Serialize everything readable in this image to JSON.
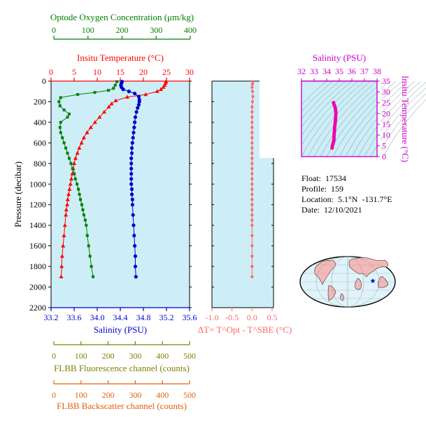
{
  "info": {
    "float": "Float:  17534",
    "profile": "Profile:  159",
    "location": "Location:  5.1°N  -131.7°E",
    "date": "Date:  12/10/2021"
  },
  "axes": {
    "oxygen": {
      "title": "Optode Oxygen Concentration (μm/kg)",
      "ticks": [
        "0",
        "100",
        "200",
        "300",
        "400"
      ],
      "range": [
        0,
        400
      ],
      "color": "#008000"
    },
    "temperature": {
      "title": "Insitu Temperature (°C)",
      "ticks": [
        "0",
        "5",
        "10",
        "15",
        "20",
        "25",
        "30"
      ],
      "range": [
        0,
        30
      ],
      "color": "#ff0000"
    },
    "pressure": {
      "title": "Pressure (decibar)",
      "ticks": [
        "0",
        "200",
        "400",
        "600",
        "800",
        "1000",
        "1200",
        "1400",
        "1600",
        "1800",
        "2000",
        "2200"
      ],
      "range": [
        0,
        2200
      ]
    },
    "salinity": {
      "title": "Salinity (PSU)",
      "ticks": [
        "33.2",
        "33.6",
        "34.0",
        "34.4",
        "34.8",
        "35.2",
        "35.6"
      ],
      "range": [
        33.2,
        35.6
      ],
      "color": "#0000cc"
    },
    "delta_t": {
      "title": "ΔT= T^Opt - T^SBE (°C)",
      "ticks": [
        "-1.0",
        "-0.5",
        "0.0",
        "0.5"
      ],
      "range": [
        -1.0,
        0.5
      ],
      "color": "#ff6666"
    },
    "flbb_fluor": {
      "title": "FLBB Fluorescence channel (counts)",
      "ticks": [
        "0",
        "100",
        "200",
        "300",
        "400",
        "500"
      ],
      "range": [
        0,
        500
      ],
      "color": "#808000"
    },
    "flbb_back": {
      "title": "FLBB Backscatter channel (counts)",
      "ticks": [
        "0",
        "100",
        "200",
        "300",
        "400",
        "500"
      ],
      "range": [
        0,
        500
      ],
      "color": "#e06010"
    },
    "ts_salinity": {
      "title": "Salinity (PSU)",
      "ticks": [
        "32",
        "33",
        "34",
        "35",
        "36",
        "37",
        "38"
      ],
      "range": [
        32,
        38
      ],
      "color": "#cc00cc"
    },
    "ts_temperature": {
      "title": "Insitu Temperature (°C)",
      "ticks": [
        "0",
        "5",
        "10",
        "15",
        "20",
        "25",
        "30",
        "35"
      ],
      "range": [
        0,
        35
      ],
      "color": "#cc00cc"
    }
  },
  "colors": {
    "panel_bg": "#cdeef6",
    "map_land": "#f4b8b8",
    "map_ocean": "#dff4fa"
  },
  "chart_data": [
    {
      "type": "line",
      "title": "",
      "series": [
        {
          "name": "Insitu Temperature (°C)",
          "x_axis": "temperature",
          "points": [
            [
              24.9,
              5
            ],
            [
              24.8,
              20
            ],
            [
              24.6,
              40
            ],
            [
              24.3,
              60
            ],
            [
              23.8,
              80
            ],
            [
              23.0,
              100
            ],
            [
              20.5,
              130
            ],
            [
              16.5,
              155
            ],
            [
              14.0,
              190
            ],
            [
              13.1,
              220
            ],
            [
              12.5,
              250
            ],
            [
              11.5,
              300
            ],
            [
              10.5,
              350
            ],
            [
              9.5,
              400
            ],
            [
              8.6,
              450
            ],
            [
              7.8,
              500
            ],
            [
              7.1,
              550
            ],
            [
              6.6,
              600
            ],
            [
              6.1,
              650
            ],
            [
              5.7,
              700
            ],
            [
              5.3,
              750
            ],
            [
              5.0,
              800
            ],
            [
              4.8,
              850
            ],
            [
              4.6,
              900
            ],
            [
              4.4,
              950
            ],
            [
              4.2,
              1000
            ],
            [
              4.0,
              1050
            ],
            [
              3.8,
              1100
            ],
            [
              3.6,
              1150
            ],
            [
              3.5,
              1200
            ],
            [
              3.3,
              1250
            ],
            [
              3.2,
              1300
            ],
            [
              3.0,
              1400
            ],
            [
              2.8,
              1500
            ],
            [
              2.6,
              1600
            ],
            [
              2.4,
              1700
            ],
            [
              2.3,
              1800
            ],
            [
              2.2,
              1900
            ]
          ]
        },
        {
          "name": "Salinity (PSU)",
          "x_axis": "salinity",
          "points": [
            [
              34.43,
              5
            ],
            [
              34.42,
              20
            ],
            [
              34.41,
              40
            ],
            [
              34.42,
              60
            ],
            [
              34.45,
              80
            ],
            [
              34.55,
              100
            ],
            [
              34.65,
              120
            ],
            [
              34.72,
              150
            ],
            [
              34.73,
              180
            ],
            [
              34.73,
              200
            ],
            [
              34.72,
              230
            ],
            [
              34.7,
              260
            ],
            [
              34.68,
              300
            ],
            [
              34.66,
              350
            ],
            [
              34.65,
              400
            ],
            [
              34.64,
              450
            ],
            [
              34.63,
              500
            ],
            [
              34.62,
              550
            ],
            [
              34.61,
              600
            ],
            [
              34.6,
              650
            ],
            [
              34.6,
              700
            ],
            [
              34.59,
              750
            ],
            [
              34.59,
              800
            ],
            [
              34.59,
              850
            ],
            [
              34.59,
              900
            ],
            [
              34.59,
              950
            ],
            [
              34.59,
              1000
            ],
            [
              34.6,
              1050
            ],
            [
              34.6,
              1100
            ],
            [
              34.61,
              1150
            ],
            [
              34.61,
              1200
            ],
            [
              34.62,
              1300
            ],
            [
              34.63,
              1400
            ],
            [
              34.64,
              1500
            ],
            [
              34.65,
              1600
            ],
            [
              34.66,
              1700
            ],
            [
              34.66,
              1800
            ],
            [
              34.67,
              1900
            ]
          ]
        },
        {
          "name": "Optode Oxygen Concentration (μm/kg)",
          "x_axis": "oxygen",
          "points": [
            [
              185,
              5
            ],
            [
              180,
              40
            ],
            [
              175,
              70
            ],
            [
              160,
              90
            ],
            [
              120,
              110
            ],
            [
              70,
              130
            ],
            [
              20,
              160
            ],
            [
              15,
              200
            ],
            [
              18,
              240
            ],
            [
              30,
              280
            ],
            [
              45,
              320
            ],
            [
              40,
              350
            ],
            [
              20,
              400
            ],
            [
              18,
              450
            ],
            [
              20,
              500
            ],
            [
              25,
              550
            ],
            [
              30,
              600
            ],
            [
              35,
              650
            ],
            [
              40,
              700
            ],
            [
              45,
              750
            ],
            [
              50,
              800
            ],
            [
              55,
              850
            ],
            [
              60,
              900
            ],
            [
              63,
              950
            ],
            [
              68,
              1000
            ],
            [
              72,
              1050
            ],
            [
              75,
              1100
            ],
            [
              78,
              1150
            ],
            [
              82,
              1200
            ],
            [
              85,
              1250
            ],
            [
              88,
              1300
            ],
            [
              92,
              1350
            ],
            [
              95,
              1400
            ],
            [
              98,
              1500
            ],
            [
              102,
              1600
            ],
            [
              106,
              1700
            ],
            [
              110,
              1800
            ],
            [
              115,
              1900
            ]
          ]
        }
      ]
    },
    {
      "type": "scatter",
      "title": "",
      "series": [
        {
          "name": "ΔT= T^Opt - T^SBE (°C)",
          "x_axis": "delta_t",
          "points": [
            [
              0.02,
              5
            ],
            [
              0.01,
              30
            ],
            [
              0.0,
              60
            ],
            [
              0.01,
              100
            ],
            [
              0.02,
              150
            ],
            [
              0.01,
              200
            ],
            [
              0.0,
              250
            ],
            [
              0.0,
              300
            ],
            [
              0.0,
              350
            ],
            [
              0.0,
              400
            ],
            [
              0.0,
              450
            ],
            [
              0.0,
              500
            ],
            [
              0.0,
              550
            ],
            [
              0.0,
              600
            ],
            [
              0.0,
              650
            ],
            [
              0.0,
              700
            ],
            [
              0.0,
              750
            ],
            [
              0.0,
              800
            ],
            [
              0.0,
              850
            ],
            [
              0.0,
              900
            ],
            [
              0.0,
              950
            ],
            [
              0.0,
              1000
            ],
            [
              0.0,
              1050
            ],
            [
              0.0,
              1100
            ],
            [
              0.0,
              1150
            ],
            [
              0.0,
              1200
            ],
            [
              0.0,
              1250
            ],
            [
              0.0,
              1300
            ],
            [
              0.0,
              1350
            ],
            [
              0.0,
              1400
            ],
            [
              0.0,
              1500
            ],
            [
              0.0,
              1600
            ],
            [
              0.0,
              1700
            ],
            [
              0.0,
              1800
            ],
            [
              0.0,
              1900
            ]
          ]
        }
      ]
    },
    {
      "type": "scatter",
      "title": "",
      "series": [
        {
          "name": "T-S",
          "points": [
            [
              34.43,
              4
            ],
            [
              34.45,
              5
            ],
            [
              34.5,
              6
            ],
            [
              34.55,
              7
            ],
            [
              34.58,
              8
            ],
            [
              34.58,
              9
            ],
            [
              34.59,
              10
            ],
            [
              34.6,
              11
            ],
            [
              34.62,
              12
            ],
            [
              34.63,
              13
            ],
            [
              34.64,
              14
            ],
            [
              34.66,
              15
            ],
            [
              34.68,
              16
            ],
            [
              34.7,
              17
            ],
            [
              34.71,
              18
            ],
            [
              34.72,
              19
            ],
            [
              34.73,
              20
            ],
            [
              34.72,
              21
            ],
            [
              34.7,
              22
            ],
            [
              34.66,
              23
            ],
            [
              34.6,
              24
            ],
            [
              34.55,
              25
            ]
          ]
        }
      ]
    }
  ]
}
